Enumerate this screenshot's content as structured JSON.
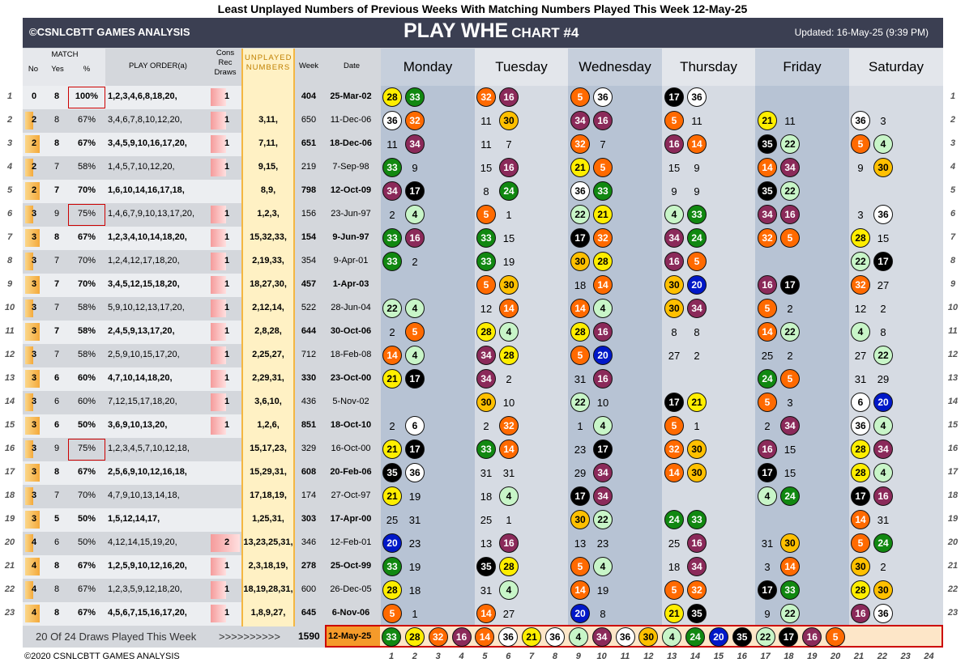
{
  "title": "Least Unplayed Numbers of Previous Weeks With Matching Numbers Played This Week 12-May-25",
  "brand": "©CSNLCBTT GAMES ANALYSIS",
  "chart_title": "PLAY WHE",
  "chart_num": "CHART #4",
  "updated": "Updated: 16-May-25 (9:39 PM)",
  "col_heads": {
    "match": "MATCH",
    "no": "No",
    "yes": "Yes",
    "pct": "%",
    "order": "PLAY ORDER(a)",
    "cons": "Cons Rec Draws",
    "unplayed": "UNPLAYED NUMBERS",
    "week": "Week",
    "date": "Date"
  },
  "days": [
    "Monday",
    "Tuesday",
    "Wednesday",
    "Thursday",
    "Friday",
    "Saturday"
  ],
  "colors": {
    "1": "#ffffff",
    "2": "#ffffff",
    "3": "#ffffff",
    "4": "#c8f5c8",
    "5": "#ff6a00",
    "8": "#ffffff",
    "9": "#ffffff",
    "10": "#ffffff",
    "11": "#ffffff",
    "12": "#ffffff",
    "14": "#ff6a00",
    "15": "#ffffff",
    "16": "#8b2a5a",
    "17": "#000000",
    "19": "#ffffff",
    "20": "#0018c8",
    "21": "#ffee00",
    "22": "#c8f5c8",
    "23": "#ffffff",
    "24": "#118811",
    "25": "#ffffff",
    "27": "#ffffff",
    "28": "#ffee00",
    "29": "#ffffff",
    "30": "#ffc000",
    "31": "#ffffff",
    "32": "#ff6a00",
    "33": "#118811",
    "34": "#8b2a5a",
    "35": "#000000",
    "36": "#ffffff"
  },
  "rows": [
    {
      "no": "0",
      "yes": "8",
      "pct": "100%",
      "order": "1,2,3,4,6,8,18,20,",
      "cons": "1",
      "unp": "",
      "wk": "404",
      "date": "25-Mar-02",
      "bold": true,
      "box": true,
      "d": [
        [
          28,
          33
        ],
        [
          32,
          16
        ],
        [
          5,
          36
        ],
        [
          17,
          36
        ],
        [],
        []
      ]
    },
    {
      "no": "2",
      "yes": "8",
      "pct": "67%",
      "order": "3,4,6,7,8,10,12,20,",
      "cons": "1",
      "unp": "3,11,",
      "wk": "650",
      "date": "11-Dec-06",
      "bold": false,
      "d": [
        [
          36,
          32
        ],
        [
          11,
          30
        ],
        [
          34,
          16
        ],
        [
          5,
          11
        ],
        [
          21,
          11
        ],
        [
          36,
          3
        ]
      ]
    },
    {
      "no": "2",
      "yes": "8",
      "pct": "67%",
      "order": "3,4,5,9,10,16,17,20,",
      "cons": "1",
      "unp": "7,11,",
      "wk": "651",
      "date": "18-Dec-06",
      "bold": true,
      "d": [
        [
          11,
          34
        ],
        [
          11,
          7
        ],
        [
          32,
          7
        ],
        [
          16,
          14
        ],
        [
          35,
          22
        ],
        [
          5,
          4
        ]
      ]
    },
    {
      "no": "2",
      "yes": "7",
      "pct": "58%",
      "order": "1,4,5,7,10,12,20,",
      "cons": "1",
      "unp": "9,15,",
      "wk": "219",
      "date": "7-Sep-98",
      "bold": false,
      "d": [
        [
          33,
          9
        ],
        [
          15,
          16
        ],
        [
          21,
          5
        ],
        [
          15,
          9
        ],
        [
          14,
          34
        ],
        [
          9,
          30
        ]
      ]
    },
    {
      "no": "2",
      "yes": "7",
      "pct": "70%",
      "order": "1,6,10,14,16,17,18,",
      "cons": "",
      "unp": "8,9,",
      "wk": "798",
      "date": "12-Oct-09",
      "bold": true,
      "d": [
        [
          34,
          17
        ],
        [
          8,
          24
        ],
        [
          36,
          33
        ],
        [
          9,
          9
        ],
        [
          35,
          22
        ],
        []
      ]
    },
    {
      "no": "3",
      "yes": "9",
      "pct": "75%",
      "order": "1,4,6,7,9,10,13,17,20,",
      "cons": "1",
      "unp": "1,2,3,",
      "wk": "156",
      "date": "23-Jun-97",
      "bold": false,
      "box": true,
      "d": [
        [
          2,
          4
        ],
        [
          5,
          1
        ],
        [
          22,
          21
        ],
        [
          4,
          33
        ],
        [
          34,
          16
        ],
        [
          3,
          36
        ]
      ]
    },
    {
      "no": "3",
      "yes": "8",
      "pct": "67%",
      "order": "1,2,3,4,10,14,18,20,",
      "cons": "1",
      "unp": "15,32,33,",
      "wk": "154",
      "date": "9-Jun-97",
      "bold": true,
      "d": [
        [
          33,
          16
        ],
        [
          33,
          15
        ],
        [
          17,
          32
        ],
        [
          34,
          24
        ],
        [
          32,
          5
        ],
        [
          28,
          15
        ]
      ]
    },
    {
      "no": "3",
      "yes": "7",
      "pct": "70%",
      "order": "1,2,4,12,17,18,20,",
      "cons": "1",
      "unp": "2,19,33,",
      "wk": "354",
      "date": "9-Apr-01",
      "bold": false,
      "d": [
        [
          33,
          2
        ],
        [
          33,
          19
        ],
        [
          30,
          28
        ],
        [
          16,
          5
        ],
        [],
        [
          22,
          17
        ]
      ]
    },
    {
      "no": "3",
      "yes": "7",
      "pct": "70%",
      "order": "3,4,5,12,15,18,20,",
      "cons": "1",
      "unp": "18,27,30,",
      "wk": "457",
      "date": "1-Apr-03",
      "bold": true,
      "d": [
        [],
        [
          5,
          30
        ],
        [
          18,
          14
        ],
        [
          30,
          20
        ],
        [
          16,
          17
        ],
        [
          32,
          27
        ]
      ]
    },
    {
      "no": "3",
      "yes": "7",
      "pct": "58%",
      "order": "5,9,10,12,13,17,20,",
      "cons": "1",
      "unp": "2,12,14,",
      "wk": "522",
      "date": "28-Jun-04",
      "bold": false,
      "d": [
        [
          22,
          4
        ],
        [
          12,
          14
        ],
        [
          14,
          4
        ],
        [
          30,
          34
        ],
        [
          5,
          2
        ],
        [
          12,
          2
        ]
      ]
    },
    {
      "no": "3",
      "yes": "7",
      "pct": "58%",
      "order": "2,4,5,9,13,17,20,",
      "cons": "1",
      "unp": "2,8,28,",
      "wk": "644",
      "date": "30-Oct-06",
      "bold": true,
      "d": [
        [
          2,
          5
        ],
        [
          28,
          4
        ],
        [
          28,
          16
        ],
        [
          8,
          8
        ],
        [
          14,
          22
        ],
        [
          4,
          8
        ]
      ]
    },
    {
      "no": "3",
      "yes": "7",
      "pct": "58%",
      "order": "2,5,9,10,15,17,20,",
      "cons": "1",
      "unp": "2,25,27,",
      "wk": "712",
      "date": "18-Feb-08",
      "bold": false,
      "d": [
        [
          14,
          4
        ],
        [
          34,
          28
        ],
        [
          5,
          20
        ],
        [
          27,
          2
        ],
        [
          25,
          2
        ],
        [
          27,
          22
        ]
      ]
    },
    {
      "no": "3",
      "yes": "6",
      "pct": "60%",
      "order": "4,7,10,14,18,20,",
      "cons": "1",
      "unp": "2,29,31,",
      "wk": "330",
      "date": "23-Oct-00",
      "bold": true,
      "d": [
        [
          21,
          17
        ],
        [
          34,
          2
        ],
        [
          31,
          16
        ],
        [],
        [
          24,
          5
        ],
        [
          31,
          29
        ]
      ]
    },
    {
      "no": "3",
      "yes": "6",
      "pct": "60%",
      "order": "7,12,15,17,18,20,",
      "cons": "1",
      "unp": "3,6,10,",
      "wk": "436",
      "date": "5-Nov-02",
      "bold": false,
      "d": [
        [],
        [
          30,
          10
        ],
        [
          22,
          10
        ],
        [
          17,
          21
        ],
        [
          5,
          3
        ],
        [
          6,
          20
        ]
      ]
    },
    {
      "no": "3",
      "yes": "6",
      "pct": "50%",
      "order": "3,6,9,10,13,20,",
      "cons": "1",
      "unp": "1,2,6,",
      "wk": "851",
      "date": "18-Oct-10",
      "bold": true,
      "d": [
        [
          2,
          6
        ],
        [
          2,
          32
        ],
        [
          1,
          4
        ],
        [
          5,
          1
        ],
        [
          2,
          34
        ],
        [
          36,
          4
        ]
      ]
    },
    {
      "no": "3",
      "yes": "9",
      "pct": "75%",
      "order": "1,2,3,4,5,7,10,12,18,",
      "cons": "",
      "unp": "15,17,23,",
      "wk": "329",
      "date": "16-Oct-00",
      "bold": false,
      "box": true,
      "d": [
        [
          21,
          17
        ],
        [
          33,
          14
        ],
        [
          23,
          17
        ],
        [
          32,
          30
        ],
        [
          16,
          15
        ],
        [
          28,
          34
        ]
      ]
    },
    {
      "no": "3",
      "yes": "8",
      "pct": "67%",
      "order": "2,5,6,9,10,12,16,18,",
      "cons": "",
      "unp": "15,29,31,",
      "wk": "608",
      "date": "20-Feb-06",
      "bold": true,
      "d": [
        [
          35,
          36
        ],
        [
          31,
          31
        ],
        [
          29,
          34
        ],
        [
          14,
          30
        ],
        [
          17,
          15
        ],
        [
          28,
          4
        ]
      ]
    },
    {
      "no": "3",
      "yes": "7",
      "pct": "70%",
      "order": "4,7,9,10,13,14,18,",
      "cons": "",
      "unp": "17,18,19,",
      "wk": "174",
      "date": "27-Oct-97",
      "bold": false,
      "d": [
        [
          21,
          19
        ],
        [
          18,
          4
        ],
        [
          17,
          34
        ],
        [],
        [
          4,
          24
        ],
        [
          17,
          16
        ]
      ]
    },
    {
      "no": "3",
      "yes": "5",
      "pct": "50%",
      "order": "1,5,12,14,17,",
      "cons": "",
      "unp": "1,25,31,",
      "wk": "303",
      "date": "17-Apr-00",
      "bold": true,
      "d": [
        [
          25,
          31
        ],
        [
          25,
          1
        ],
        [
          30,
          22
        ],
        [
          24,
          33
        ],
        [],
        [
          14,
          31
        ]
      ]
    },
    {
      "no": "4",
      "yes": "6",
      "pct": "50%",
      "order": "4,12,14,15,19,20,",
      "cons": "2",
      "unp": "13,23,25,31,",
      "wk": "346",
      "date": "12-Feb-01",
      "bold": false,
      "d": [
        [
          20,
          23
        ],
        [
          13,
          16
        ],
        [
          13,
          23
        ],
        [
          25,
          16
        ],
        [
          31,
          30
        ],
        [
          5,
          24
        ]
      ]
    },
    {
      "no": "4",
      "yes": "8",
      "pct": "67%",
      "order": "1,2,5,9,10,12,16,20,",
      "cons": "1",
      "unp": "2,3,18,19,",
      "wk": "278",
      "date": "25-Oct-99",
      "bold": true,
      "d": [
        [
          33,
          19
        ],
        [
          35,
          28
        ],
        [
          5,
          4
        ],
        [
          18,
          34
        ],
        [
          3,
          14
        ],
        [
          30,
          2
        ]
      ]
    },
    {
      "no": "4",
      "yes": "8",
      "pct": "67%",
      "order": "1,2,3,5,9,12,18,20,",
      "cons": "1",
      "unp": "18,19,28,31,",
      "wk": "600",
      "date": "26-Dec-05",
      "bold": false,
      "d": [
        [
          28,
          18
        ],
        [
          31,
          4
        ],
        [
          14,
          19
        ],
        [
          5,
          32
        ],
        [
          17,
          33
        ],
        [
          28,
          30
        ]
      ]
    },
    {
      "no": "4",
      "yes": "8",
      "pct": "67%",
      "order": "4,5,6,7,15,16,17,20,",
      "cons": "1",
      "unp": "1,8,9,27,",
      "wk": "645",
      "date": "6-Nov-06",
      "bold": true,
      "d": [
        [
          5,
          1
        ],
        [
          14,
          27
        ],
        [
          20,
          8
        ],
        [
          21,
          35
        ],
        [
          9,
          22
        ],
        [
          16,
          36
        ]
      ]
    }
  ],
  "footer": {
    "label": "20 Of 24 Draws Played This Week",
    "arrows": ">>>>>>>>>>",
    "wk": "1590",
    "date": "12-May-25"
  },
  "this_week": [
    33,
    28,
    32,
    16,
    14,
    36,
    21,
    36,
    4,
    34,
    36,
    30,
    4,
    24,
    20,
    35,
    22,
    17,
    16,
    5
  ],
  "index": [
    "1",
    "2",
    "3",
    "4",
    "5",
    "6",
    "7",
    "8",
    "9",
    "10",
    "11",
    "12",
    "13",
    "14",
    "15",
    "16",
    "17",
    "18",
    "19",
    "20",
    "21",
    "22",
    "23",
    "24"
  ],
  "copyright": "©2020 CSNLCBTT GAMES ANALYSIS"
}
